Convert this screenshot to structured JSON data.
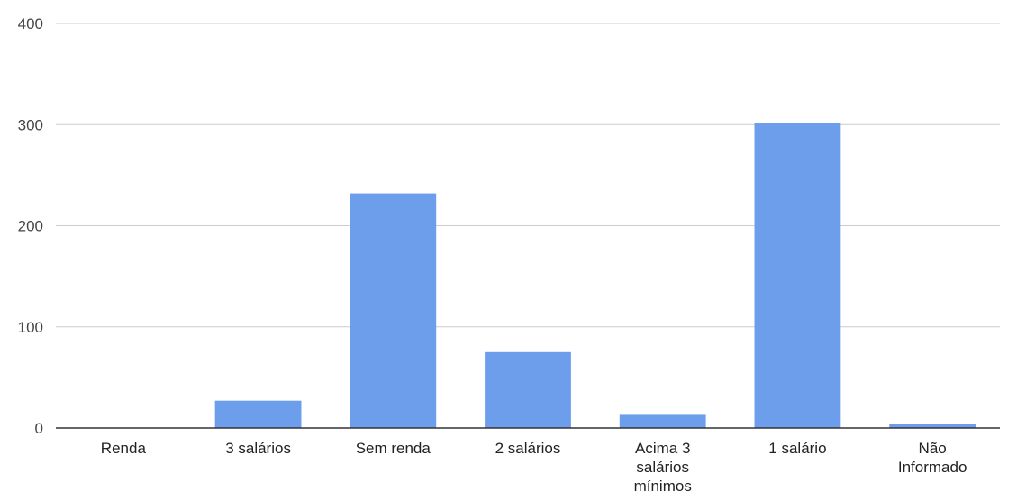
{
  "chart_data": {
    "type": "bar",
    "title": "",
    "xlabel": "",
    "ylabel": "",
    "categories": [
      "Renda",
      "3 salários",
      "Sem renda",
      "2 salários",
      "Acima 3 salários mínimos",
      "1 salário",
      "Não Informado"
    ],
    "category_label_lines": [
      [
        "Renda"
      ],
      [
        "3 salários"
      ],
      [
        "Sem renda"
      ],
      [
        "2 salários"
      ],
      [
        "Acima 3",
        "salários",
        "mínimos"
      ],
      [
        "1 salário"
      ],
      [
        "Não",
        "Informado"
      ]
    ],
    "values": [
      0,
      27,
      232,
      75,
      13,
      302,
      4
    ],
    "ylim": [
      0,
      400
    ],
    "yticks": [
      0,
      100,
      200,
      300,
      400
    ],
    "grid": true,
    "legend": "none",
    "bar_color": "#6d9eeb"
  }
}
